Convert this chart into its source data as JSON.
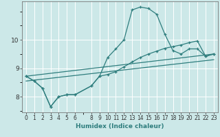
{
  "xlabel": "Humidex (Indice chaleur)",
  "bg_color": "#cce8e8",
  "line_color": "#2e7d7d",
  "grid_color": "#ffffff",
  "xlim": [
    -0.5,
    23.5
  ],
  "ylim": [
    7.45,
    11.35
  ],
  "yticks": [
    8,
    9,
    10
  ],
  "xticks": [
    0,
    1,
    2,
    3,
    4,
    5,
    6,
    8,
    9,
    10,
    11,
    12,
    13,
    14,
    15,
    16,
    17,
    18,
    19,
    20,
    21,
    22,
    23
  ],
  "line1_x": [
    0,
    1,
    2,
    3,
    4,
    5,
    6,
    8,
    9,
    10,
    11,
    12,
    13,
    14,
    15,
    16,
    17,
    18,
    19,
    20,
    21,
    22,
    23
  ],
  "line1_y": [
    8.72,
    8.55,
    8.3,
    7.65,
    8.0,
    8.07,
    8.07,
    8.38,
    8.72,
    9.38,
    9.68,
    10.0,
    11.05,
    11.15,
    11.1,
    10.9,
    10.2,
    9.62,
    9.5,
    9.68,
    9.68,
    9.42,
    9.5
  ],
  "line2_x": [
    0,
    1,
    2,
    3,
    4,
    5,
    6,
    8,
    9,
    10,
    11,
    12,
    13,
    14,
    15,
    16,
    17,
    18,
    19,
    20,
    21,
    22,
    23
  ],
  "line2_y": [
    8.72,
    8.55,
    8.3,
    7.65,
    8.0,
    8.07,
    8.07,
    8.38,
    8.72,
    8.78,
    8.88,
    9.05,
    9.22,
    9.38,
    9.5,
    9.6,
    9.7,
    9.76,
    9.82,
    9.9,
    9.96,
    9.42,
    9.5
  ],
  "line3_x": [
    0,
    23
  ],
  "line3_y": [
    8.72,
    9.5
  ],
  "line4_x": [
    0,
    23
  ],
  "line4_y": [
    8.55,
    9.3
  ]
}
